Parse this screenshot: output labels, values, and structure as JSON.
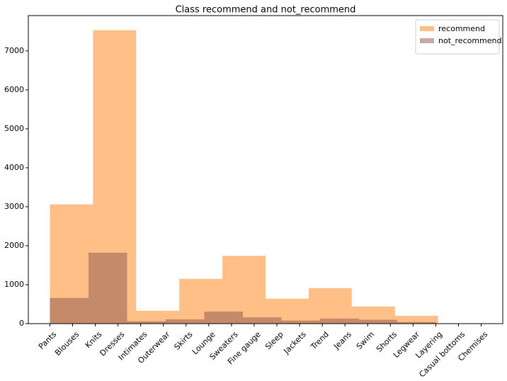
{
  "chart_data": {
    "type": "histogram",
    "title": "Class recommend and not_recommend",
    "series": [
      {
        "name": "recommend",
        "color": "#ff7f0e",
        "alpha": 0.5,
        "bins": [
          0,
          1.9,
          3.8,
          5.7,
          7.6,
          9.5,
          11.4,
          13.3,
          15.2,
          17.1,
          19
        ],
        "values": [
          3060,
          7530,
          330,
          1150,
          1740,
          640,
          910,
          440,
          200,
          0
        ]
      },
      {
        "name": "not_recommend",
        "color": "#8c564b",
        "alpha": 0.5,
        "bins": [
          0,
          1.7,
          3.4,
          5.1,
          6.8,
          8.5,
          10.2,
          11.9,
          13.6,
          15.3,
          17
        ],
        "values": [
          660,
          1820,
          60,
          110,
          310,
          160,
          80,
          130,
          100,
          40
        ]
      }
    ],
    "xlim": [
      -0.95,
      19.95
    ],
    "xticks": [
      {
        "value": 0,
        "label": "Pants"
      },
      {
        "value": 1,
        "label": "Blouses"
      },
      {
        "value": 2,
        "label": "Knits"
      },
      {
        "value": 3,
        "label": "Dresses"
      },
      {
        "value": 4,
        "label": "Intimates"
      },
      {
        "value": 5,
        "label": "Outerwear"
      },
      {
        "value": 6,
        "label": "Skirts"
      },
      {
        "value": 7,
        "label": "Lounge"
      },
      {
        "value": 8,
        "label": "Sweaters"
      },
      {
        "value": 9,
        "label": "Fine gauge"
      },
      {
        "value": 10,
        "label": "Sleep"
      },
      {
        "value": 11,
        "label": "Jackets"
      },
      {
        "value": 12,
        "label": "Trend"
      },
      {
        "value": 13,
        "label": "Jeans"
      },
      {
        "value": 14,
        "label": "Swim"
      },
      {
        "value": 15,
        "label": "Shorts"
      },
      {
        "value": 16,
        "label": "Legwear"
      },
      {
        "value": 17,
        "label": "Layering"
      },
      {
        "value": 18,
        "label": "Casual bottoms"
      },
      {
        "value": 19,
        "label": "Chemises"
      }
    ],
    "ylim": [
      0,
      7906
    ],
    "yticks": [
      0,
      1000,
      2000,
      3000,
      4000,
      5000,
      6000,
      7000
    ],
    "legend": "upper right"
  }
}
